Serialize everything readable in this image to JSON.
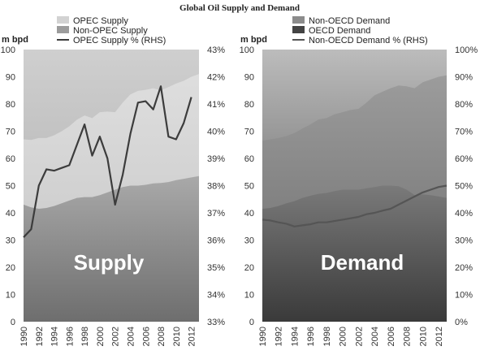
{
  "title": "Global Oil Supply and Demand",
  "chart_data": [
    {
      "type": "area",
      "panel": "supply",
      "watermark": "Supply",
      "ylabel": "m bpd",
      "y2label": "",
      "ylim": [
        0,
        100
      ],
      "yticks": [
        0,
        10,
        20,
        30,
        40,
        50,
        60,
        70,
        80,
        90,
        100
      ],
      "y2lim": [
        33,
        43
      ],
      "y2ticks": [
        "33%",
        "34%",
        "35%",
        "36%",
        "37%",
        "38%",
        "39%",
        "40%",
        "41%",
        "42%",
        "43%"
      ],
      "xlim": [
        1990,
        2013
      ],
      "xticks": [
        1990,
        1992,
        1994,
        1996,
        1998,
        2000,
        2002,
        2004,
        2006,
        2008,
        2010,
        2012
      ],
      "legend_position": "top",
      "x": [
        1990,
        1991,
        1992,
        1993,
        1994,
        1995,
        1996,
        1997,
        1998,
        1999,
        2000,
        2001,
        2002,
        2003,
        2004,
        2005,
        2006,
        2007,
        2008,
        2009,
        2010,
        2011,
        2012,
        2013
      ],
      "series": [
        {
          "name": "Non-OPEC Supply",
          "kind": "area",
          "axis": "left",
          "color": "#9c9c9c",
          "values": [
            43.0,
            42.0,
            41.5,
            41.8,
            42.5,
            43.5,
            44.5,
            45.5,
            45.8,
            45.8,
            46.5,
            47.5,
            48.5,
            49.5,
            50.0,
            50.0,
            50.3,
            50.8,
            51.0,
            51.3,
            52.0,
            52.5,
            53.0,
            53.5
          ]
        },
        {
          "name": "OPEC Supply",
          "kind": "area",
          "axis": "left",
          "color": "#d2d2d2",
          "values": [
            67.0,
            66.8,
            67.5,
            67.5,
            68.5,
            70.0,
            71.8,
            74.2,
            75.8,
            74.8,
            77.0,
            77.2,
            77.0,
            80.5,
            83.5,
            84.8,
            85.2,
            85.8,
            85.0,
            86.2,
            87.5,
            88.5,
            90.0,
            91.0
          ]
        },
        {
          "name": "OPEC Supply % (RHS)",
          "kind": "line",
          "axis": "right",
          "color": "#3c3c3c",
          "values": [
            36.1,
            36.4,
            38.0,
            38.6,
            38.55,
            38.65,
            38.75,
            39.5,
            40.25,
            39.1,
            39.8,
            39.0,
            37.3,
            38.4,
            39.9,
            41.05,
            41.1,
            40.8,
            41.65,
            39.8,
            39.7,
            40.3,
            41.25,
            null
          ]
        }
      ]
    },
    {
      "type": "area",
      "panel": "demand",
      "watermark": "Demand",
      "ylabel": "m bpd",
      "y2label": "",
      "ylim": [
        0,
        100
      ],
      "yticks": [
        0,
        10,
        20,
        30,
        40,
        50,
        60,
        70,
        80,
        90,
        100
      ],
      "y2lim": [
        0,
        100
      ],
      "y2ticks": [
        "0%",
        "10%",
        "20%",
        "30%",
        "40%",
        "50%",
        "60%",
        "70%",
        "80%",
        "90%",
        "100%"
      ],
      "xlim": [
        1990,
        2013
      ],
      "xticks": [
        1990,
        1992,
        1994,
        1996,
        1998,
        2000,
        2002,
        2004,
        2006,
        2008,
        2010,
        2012
      ],
      "legend_position": "top",
      "x": [
        1990,
        1991,
        1992,
        1993,
        1994,
        1995,
        1996,
        1997,
        1998,
        1999,
        2000,
        2001,
        2002,
        2003,
        2004,
        2005,
        2006,
        2007,
        2008,
        2009,
        2010,
        2011,
        2012,
        2013
      ],
      "series": [
        {
          "name": "OECD Demand",
          "kind": "area",
          "axis": "left",
          "color": "#444444",
          "values": [
            41.5,
            41.8,
            42.5,
            43.5,
            44.3,
            45.5,
            46.3,
            47.0,
            47.3,
            48.0,
            48.5,
            48.5,
            48.5,
            49.0,
            49.5,
            50.0,
            50.0,
            49.8,
            48.5,
            46.5,
            46.8,
            46.5,
            46.0,
            45.5
          ]
        },
        {
          "name": "Non-OECD Demand",
          "kind": "area",
          "axis": "left",
          "color": "#8c8c8c",
          "values": [
            66.5,
            67.0,
            67.5,
            68.2,
            69.3,
            71.0,
            72.5,
            74.3,
            74.8,
            76.2,
            77.0,
            77.8,
            78.2,
            80.5,
            83.2,
            84.5,
            85.8,
            86.8,
            86.5,
            85.8,
            88.0,
            89.0,
            90.0,
            90.5
          ]
        },
        {
          "name": "Non-OECD Demand % (RHS)",
          "kind": "line",
          "axis": "right",
          "color": "#555555",
          "values": [
            37.5,
            37.2,
            36.5,
            36.0,
            35.0,
            35.4,
            35.8,
            36.5,
            36.5,
            37.0,
            37.5,
            38.0,
            38.5,
            39.5,
            40.0,
            40.8,
            41.5,
            43.0,
            44.5,
            46.0,
            47.5,
            48.5,
            49.5,
            50.0
          ]
        }
      ]
    }
  ]
}
